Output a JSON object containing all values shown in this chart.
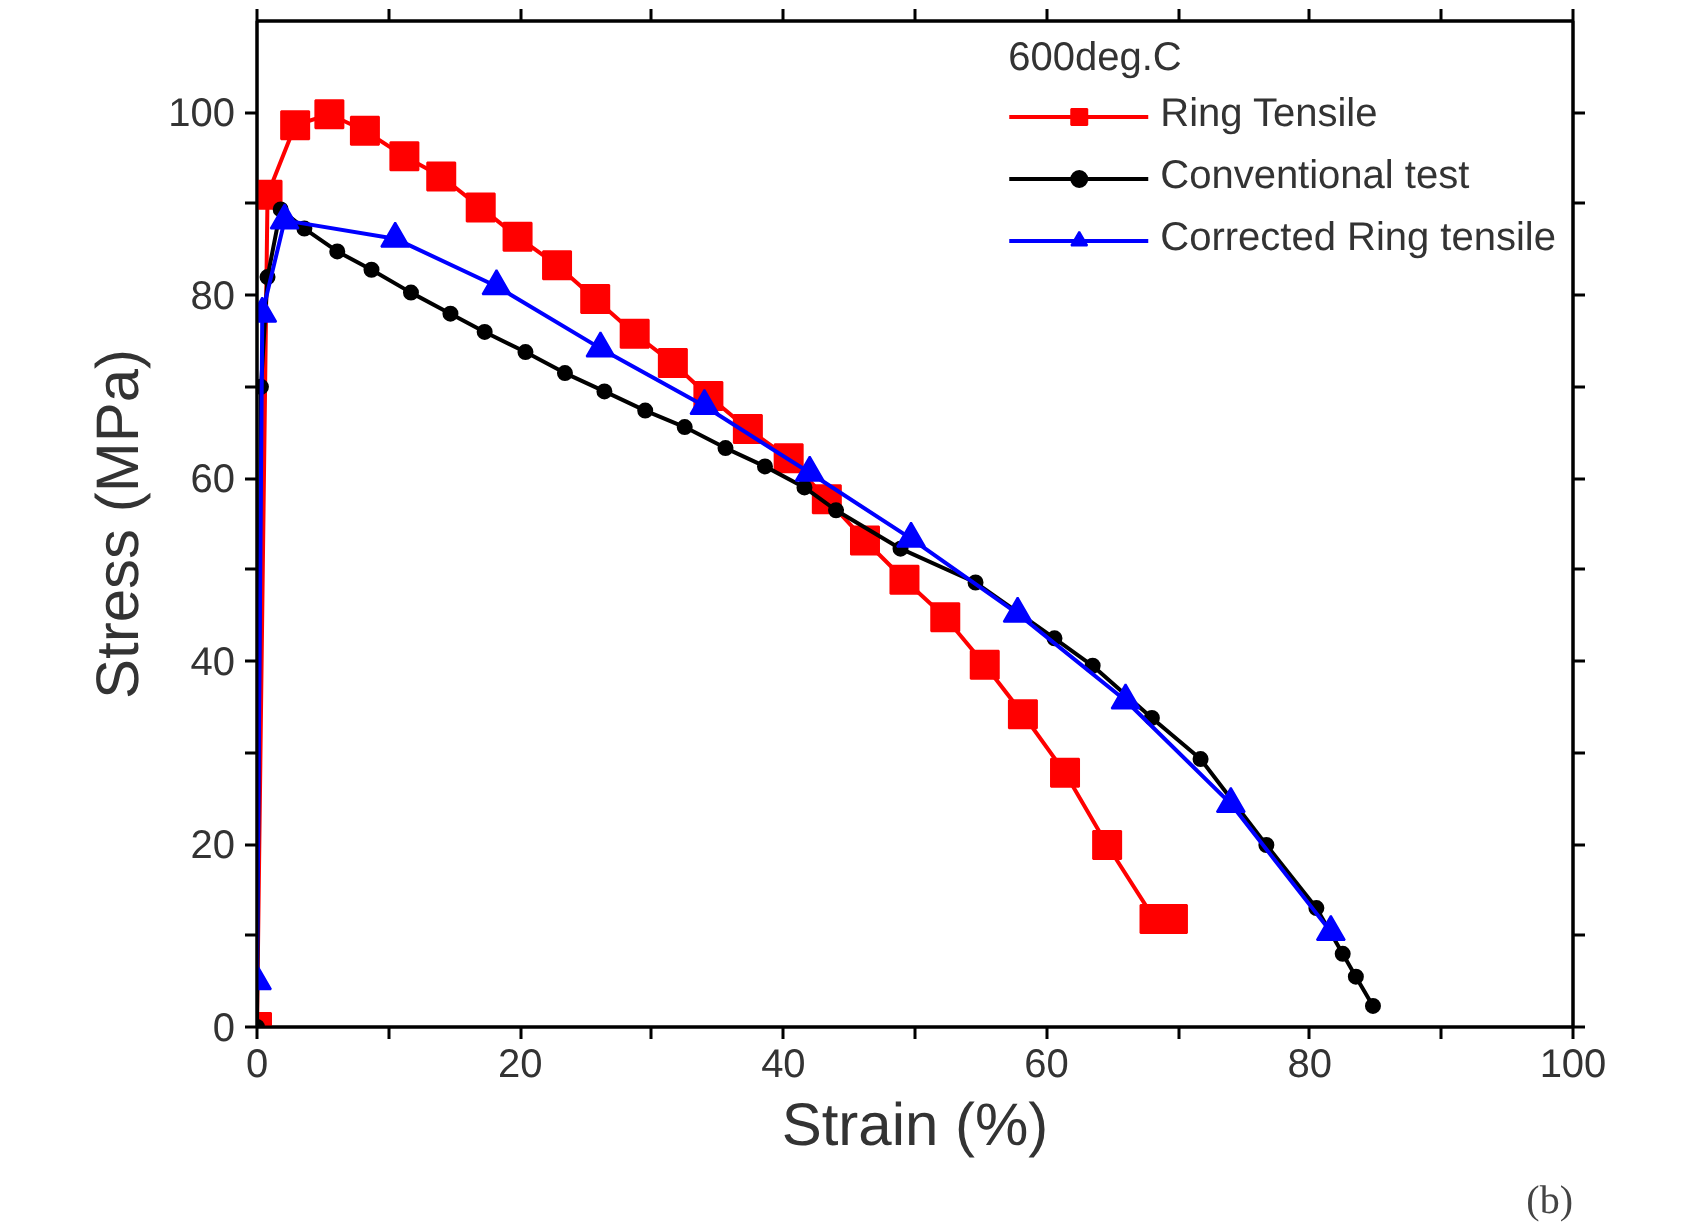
{
  "chart_data": {
    "type": "line",
    "xlabel": "Strain (%)",
    "ylabel": "Stress (MPa)",
    "legend_title": "600deg.C",
    "legend": "top right",
    "grid": false,
    "xlim": [
      0,
      100
    ],
    "ylim": [
      0,
      110
    ],
    "xticks": [
      0,
      {
        "value": 10,
        "label": null
      },
      20,
      {
        "value": 30,
        "label": null
      },
      40,
      {
        "value": 50,
        "label": null
      },
      60,
      {
        "value": 70,
        "label": null
      },
      80,
      {
        "value": 90,
        "label": null
      },
      100
    ],
    "yticks": [
      0,
      {
        "value": 10,
        "label": null
      },
      20,
      {
        "value": 30,
        "label": null
      },
      40,
      {
        "value": 50,
        "label": null
      },
      60,
      {
        "value": 70,
        "label": null
      },
      80,
      {
        "value": 90,
        "label": null
      },
      100
    ],
    "annotations": [
      "(b)"
    ],
    "series": [
      {
        "name": "Ring Tensile",
        "color": "#ff0000",
        "marker": "square",
        "x": [
          0,
          0.8,
          2.9,
          5.5,
          8.2,
          11.2,
          14,
          17,
          19.8,
          22.8,
          25.7,
          28.7,
          31.6,
          34.3,
          37.3,
          40.4,
          43.3,
          46.2,
          49.2,
          52.3,
          55.3,
          58.2,
          61.4,
          64.6,
          68.2,
          69.6
        ],
        "values": [
          0,
          91,
          98.6,
          99.8,
          98,
          95.2,
          93,
          89.6,
          86.4,
          83.3,
          79.6,
          75.8,
          72.6,
          69,
          65.4,
          62.2,
          57.7,
          53.2,
          48.9,
          44.8,
          39.6,
          34.2,
          27.8,
          19.9,
          11.8,
          11.8
        ]
      },
      {
        "name": "Conventional test",
        "color": "#000000",
        "marker": "circle",
        "x": [
          0,
          0.3,
          0.8,
          1.8,
          3.6,
          6.1,
          8.7,
          11.7,
          14.7,
          17.3,
          20.4,
          23.4,
          26.4,
          29.5,
          32.5,
          35.6,
          38.6,
          41.6,
          44,
          48.9,
          54.6,
          60.6,
          63.5,
          68,
          71.7,
          76.7,
          80.5,
          82.5,
          83.5,
          84.8
        ],
        "values": [
          0,
          70,
          82,
          89.4,
          87.3,
          84.8,
          82.8,
          80.3,
          78,
          76,
          73.8,
          71.5,
          69.5,
          67.4,
          65.6,
          63.3,
          61.3,
          59,
          56.5,
          52.3,
          48.6,
          42.5,
          39.5,
          33.8,
          29.3,
          19.9,
          13,
          8,
          5.5,
          2.3
        ]
      },
      {
        "name": "Corrected Ring tensile",
        "color": "#0000ff",
        "marker": "triangle",
        "x": [
          0,
          0.4,
          2.1,
          10.5,
          18.2,
          26.1,
          34,
          42,
          49.7,
          57.8,
          66,
          74,
          81.6
        ],
        "values": [
          5,
          78,
          88.2,
          86.2,
          81,
          74.2,
          67.9,
          60.6,
          53.4,
          45.2,
          35.7,
          24.4,
          10.4
        ]
      }
    ]
  }
}
